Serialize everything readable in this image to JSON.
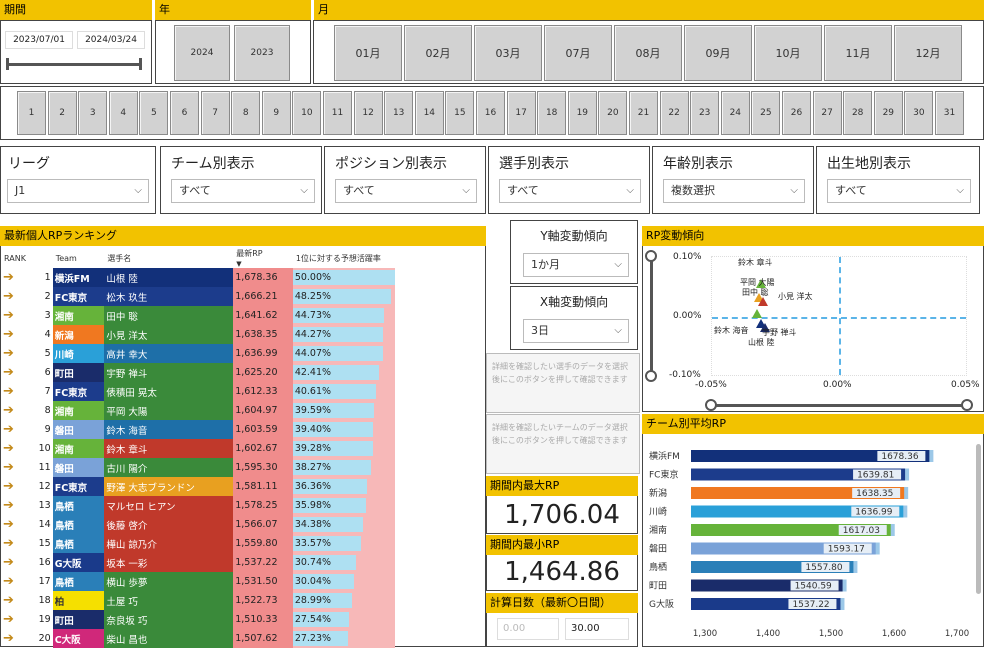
{
  "period": {
    "title": "期間",
    "start": "2023/07/01",
    "end": "2024/03/24"
  },
  "year": {
    "title": "年",
    "items": [
      "2024",
      "2023"
    ]
  },
  "month": {
    "title": "月",
    "items": [
      "01月",
      "02月",
      "03月",
      "07月",
      "08月",
      "09月",
      "10月",
      "11月",
      "12月"
    ]
  },
  "days": [
    "1",
    "2",
    "3",
    "4",
    "5",
    "6",
    "7",
    "8",
    "9",
    "10",
    "11",
    "12",
    "13",
    "14",
    "15",
    "16",
    "17",
    "18",
    "19",
    "20",
    "21",
    "22",
    "23",
    "24",
    "25",
    "26",
    "27",
    "28",
    "29",
    "30",
    "31"
  ],
  "filters": [
    {
      "title": "リーグ",
      "value": "J1"
    },
    {
      "title": "チーム別表示",
      "value": "すべて"
    },
    {
      "title": "ポジション別表示",
      "value": "すべて"
    },
    {
      "title": "選手別表示",
      "value": "すべて"
    },
    {
      "title": "年齢別表示",
      "value": "複数選択"
    },
    {
      "title": "出生地別表示",
      "value": "すべて"
    }
  ],
  "ranking": {
    "title": "最新個人RPランキング",
    "headers": {
      "rank": "RANK",
      "team": "Team",
      "player": "選手名",
      "rp": "最新RP",
      "sort": "▼",
      "prob": "1位に対する予想活躍率"
    },
    "rows": [
      {
        "rank": "1",
        "team": "横浜FM",
        "player": "山根 陸",
        "rp": "1,678.36",
        "pct": "50.00%",
        "p": 50.0,
        "tc": "#12307a",
        "pc": "#12307a"
      },
      {
        "rank": "2",
        "team": "FC東京",
        "player": "松木 玖生",
        "rp": "1,666.21",
        "pct": "48.25%",
        "p": 48.25,
        "tc": "#1c3c8c",
        "pc": "#1c3c8c"
      },
      {
        "rank": "3",
        "team": "湘南",
        "player": "田中 聡",
        "rp": "1,641.62",
        "pct": "44.73%",
        "p": 44.73,
        "tc": "#66b33a",
        "pc": "#3a8a3a"
      },
      {
        "rank": "4",
        "team": "新潟",
        "player": "小見 洋太",
        "rp": "1,638.35",
        "pct": "44.27%",
        "p": 44.27,
        "tc": "#f07820",
        "pc": "#3a8a3a"
      },
      {
        "rank": "5",
        "team": "川崎",
        "player": "高井 幸大",
        "rp": "1,636.99",
        "pct": "44.07%",
        "p": 44.07,
        "tc": "#2aa0d8",
        "pc": "#1e6fa8"
      },
      {
        "rank": "6",
        "team": "町田",
        "player": "宇野 禅斗",
        "rp": "1,625.20",
        "pct": "42.41%",
        "p": 42.41,
        "tc": "#1a2c6a",
        "pc": "#3a8a3a"
      },
      {
        "rank": "7",
        "team": "FC東京",
        "player": "俵積田 晃太",
        "rp": "1,612.33",
        "pct": "40.61%",
        "p": 40.61,
        "tc": "#1c3c8c",
        "pc": "#3a8a3a"
      },
      {
        "rank": "8",
        "team": "湘南",
        "player": "平岡 大陽",
        "rp": "1,604.97",
        "pct": "39.59%",
        "p": 39.59,
        "tc": "#66b33a",
        "pc": "#3a8a3a"
      },
      {
        "rank": "9",
        "team": "磐田",
        "player": "鈴木 海音",
        "rp": "1,603.59",
        "pct": "39.40%",
        "p": 39.4,
        "tc": "#7aa2d8",
        "pc": "#1e6fa8"
      },
      {
        "rank": "10",
        "team": "湘南",
        "player": "鈴木 章斗",
        "rp": "1,602.67",
        "pct": "39.28%",
        "p": 39.28,
        "tc": "#66b33a",
        "pc": "#c0392b"
      },
      {
        "rank": "11",
        "team": "磐田",
        "player": "古川 陽介",
        "rp": "1,595.30",
        "pct": "38.27%",
        "p": 38.27,
        "tc": "#7aa2d8",
        "pc": "#3a8a3a"
      },
      {
        "rank": "12",
        "team": "FC東京",
        "player": "野澤 大志ブランドン",
        "rp": "1,581.11",
        "pct": "36.36%",
        "p": 36.36,
        "tc": "#1c3c8c",
        "pc": "#e8a020"
      },
      {
        "rank": "13",
        "team": "鳥栖",
        "player": "マルセロ ヒアン",
        "rp": "1,578.25",
        "pct": "35.98%",
        "p": 35.98,
        "tc": "#2a7fb8",
        "pc": "#c0392b"
      },
      {
        "rank": "14",
        "team": "鳥栖",
        "player": "後藤 啓介",
        "rp": "1,566.07",
        "pct": "34.38%",
        "p": 34.38,
        "tc": "#2a7fb8",
        "pc": "#c0392b"
      },
      {
        "rank": "15",
        "team": "鳥栖",
        "player": "樺山 諒乃介",
        "rp": "1,559.80",
        "pct": "33.57%",
        "p": 33.57,
        "tc": "#2a7fb8",
        "pc": "#c0392b"
      },
      {
        "rank": "16",
        "team": "G大阪",
        "player": "坂本 一彩",
        "rp": "1,537.22",
        "pct": "30.74%",
        "p": 30.74,
        "tc": "#1a3a8a",
        "pc": "#c0392b"
      },
      {
        "rank": "17",
        "team": "鳥栖",
        "player": "横山 歩夢",
        "rp": "1,531.50",
        "pct": "30.04%",
        "p": 30.04,
        "tc": "#2a7fb8",
        "pc": "#3a8a3a"
      },
      {
        "rank": "18",
        "team": "柏",
        "player": "土屋 巧",
        "rp": "1,522.73",
        "pct": "28.99%",
        "p": 28.99,
        "tc": "#f5e000",
        "pc": "#3a8a3a"
      },
      {
        "rank": "19",
        "team": "町田",
        "player": "奈良坂 巧",
        "rp": "1,510.33",
        "pct": "27.54%",
        "p": 27.54,
        "tc": "#1a2c6a",
        "pc": "#3a8a3a"
      },
      {
        "rank": "20",
        "team": "C大阪",
        "player": "柴山 昌也",
        "rp": "1,507.62",
        "pct": "27.23%",
        "p": 27.23,
        "tc": "#d0287a",
        "pc": "#3a8a3a"
      }
    ]
  },
  "yaxis_trend": {
    "title": "Y軸変動傾向",
    "value": "1か月"
  },
  "xaxis_trend": {
    "title": "X軸変動傾向",
    "value": "3日"
  },
  "note_player": "詳細を確認したい選手のデータを選択後にこのボタンを押して確認できます",
  "note_team": "詳細を確認したいチームのデータ選択後にこのボタンを押して確認できます",
  "max_rp": {
    "title": "期間内最大RP",
    "value": "1,706.04"
  },
  "min_rp": {
    "title": "期間内最小RP",
    "value": "1,464.86"
  },
  "calc_days": {
    "title": "計算日数（最新〇日間）",
    "from": "0.00",
    "to": "30.00"
  },
  "scatter": {
    "title": "RP変動傾向",
    "yticks": [
      "0.10%",
      "0.00%",
      "-0.10%"
    ],
    "xticks": [
      "-0.05%",
      "0.00%",
      "0.05%"
    ],
    "labels": [
      "鈴木 章斗",
      "平岡 大陽",
      "田中 聡",
      "小見 洋太",
      "鈴木 海音",
      "宇野 禅斗",
      "山根 陸"
    ]
  },
  "chart_data": {
    "type": "bar",
    "title": "チーム別平均RP",
    "categories": [
      "横浜FM",
      "FC東京",
      "新潟",
      "川崎",
      "湘南",
      "磐田",
      "鳥栖",
      "町田",
      "G大阪"
    ],
    "values": [
      1678.36,
      1639.81,
      1638.35,
      1636.99,
      1617.03,
      1593.17,
      1557.8,
      1540.59,
      1537.22
    ],
    "colors": [
      "#12307a",
      "#1c3c8c",
      "#f07820",
      "#2aa0d8",
      "#66b33a",
      "#7aa2d8",
      "#2a7fb8",
      "#1a2c6a",
      "#1a3a8a"
    ],
    "xlim": [
      1300,
      1700
    ],
    "xticks": [
      "1,300",
      "1,400",
      "1,500",
      "1,600",
      "1,700"
    ]
  }
}
